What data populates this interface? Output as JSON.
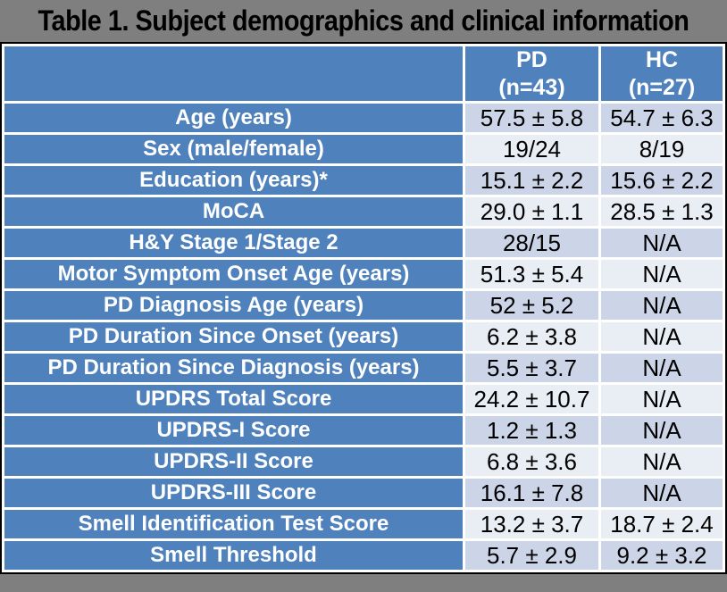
{
  "title": "Table 1. Subject demographics and clinical information",
  "colors": {
    "accent_blue": "#4f81bd",
    "band_dark": "#ccd5e8",
    "band_light": "#e9edf4",
    "bar_gray": "#7f7f7f",
    "frame_black": "#000000"
  },
  "table": {
    "header": {
      "pd": [
        "PD",
        "(n=43)"
      ],
      "hc": [
        "HC",
        "(n=27)"
      ]
    },
    "rows": [
      {
        "label": "Age (years)",
        "pd": "57.5 ± 5.8",
        "hc": "54.7 ± 6.3"
      },
      {
        "label": "Sex (male/female)",
        "pd": "19/24",
        "hc": "8/19"
      },
      {
        "label": "Education (years)*",
        "pd": "15.1 ± 2.2",
        "hc": "15.6 ± 2.2"
      },
      {
        "label": "MoCA",
        "pd": "29.0 ± 1.1",
        "hc": "28.5 ± 1.3"
      },
      {
        "label": "H&Y Stage 1/Stage 2",
        "pd": "28/15",
        "hc": "N/A"
      },
      {
        "label": "Motor Symptom Onset Age (years)",
        "pd": "51.3 ± 5.4",
        "hc": "N/A"
      },
      {
        "label": "PD Diagnosis Age (years)",
        "pd": "52 ± 5.2",
        "hc": "N/A"
      },
      {
        "label": "PD Duration Since Onset (years)",
        "pd": "6.2 ± 3.8",
        "hc": "N/A"
      },
      {
        "label": "PD Duration Since Diagnosis (years)",
        "pd": "5.5 ± 3.7",
        "hc": "N/A"
      },
      {
        "label": "UPDRS Total Score",
        "pd": "24.2 ± 10.7",
        "hc": "N/A"
      },
      {
        "label": "UPDRS-I Score",
        "pd": "1.2 ± 1.3",
        "hc": "N/A"
      },
      {
        "label": "UPDRS-II Score",
        "pd": "6.8 ± 3.6",
        "hc": "N/A"
      },
      {
        "label": "UPDRS-III Score",
        "pd": "16.1 ± 7.8",
        "hc": "N/A"
      },
      {
        "label": "Smell Identification Test Score",
        "pd": "13.2 ± 3.7",
        "hc": "18.7 ± 2.4"
      },
      {
        "label": "Smell Threshold",
        "pd": "5.7 ± 2.9",
        "hc": "9.2 ± 3.2"
      }
    ]
  }
}
